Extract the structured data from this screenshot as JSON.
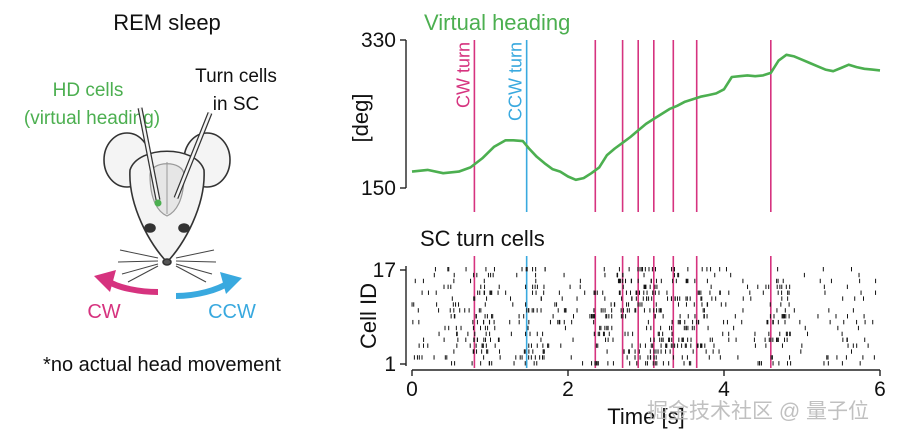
{
  "left_panel": {
    "title": "REM sleep",
    "hd_label_line1": "HD cells",
    "hd_label_line2": "(virtual heading)",
    "turn_label_line1": "Turn cells",
    "turn_label_line2": "in SC",
    "cw_label": "CW",
    "ccw_label": "CCW",
    "footnote": "*no actual head movement"
  },
  "watermark": "掘金技术社区 @ 量子位",
  "colors": {
    "heading": "#4caf50",
    "cw": "#d6337f",
    "ccw": "#39a9df",
    "raster": "#111111",
    "axis": "#222222"
  },
  "chart_data": {
    "type": "line",
    "title": "Virtual heading",
    "xlabel": "Time [s]",
    "xlim": [
      0,
      6
    ],
    "xticks": [
      0,
      2,
      4,
      6
    ],
    "top_panel": {
      "ylabel": "[deg]",
      "ylim": [
        150,
        330
      ],
      "yticks": [
        150,
        330
      ],
      "series": [
        {
          "name": "Virtual heading",
          "x": [
            0,
            0.2,
            0.4,
            0.6,
            0.75,
            0.9,
            1.05,
            1.2,
            1.3,
            1.42,
            1.5,
            1.6,
            1.7,
            1.8,
            1.9,
            2.0,
            2.1,
            2.2,
            2.3,
            2.4,
            2.5,
            2.6,
            2.7,
            2.8,
            2.9,
            3.0,
            3.1,
            3.2,
            3.3,
            3.4,
            3.5,
            3.6,
            3.7,
            3.8,
            3.9,
            4.0,
            4.1,
            4.2,
            4.3,
            4.4,
            4.5,
            4.6,
            4.7,
            4.8,
            4.9,
            5.0,
            5.1,
            5.2,
            5.3,
            5.4,
            5.5,
            5.6,
            5.7,
            5.8,
            5.9,
            6.0
          ],
          "values": [
            170,
            172,
            168,
            170,
            175,
            186,
            200,
            208,
            208,
            207,
            198,
            188,
            180,
            173,
            170,
            164,
            160,
            162,
            168,
            175,
            190,
            198,
            205,
            212,
            220,
            228,
            234,
            240,
            246,
            250,
            255,
            258,
            261,
            263,
            265,
            270,
            285,
            286,
            287,
            286,
            287,
            290,
            305,
            312,
            310,
            306,
            302,
            298,
            294,
            292,
            296,
            300,
            297,
            295,
            294,
            293
          ]
        }
      ],
      "events": [
        {
          "label": "CW turn",
          "x": 0.8,
          "kind": "cw"
        },
        {
          "label": "CCW turn",
          "x": 1.47,
          "kind": "ccw"
        },
        {
          "label": "",
          "x": 2.35,
          "kind": "cw"
        },
        {
          "label": "",
          "x": 2.7,
          "kind": "cw"
        },
        {
          "label": "",
          "x": 2.9,
          "kind": "cw"
        },
        {
          "label": "",
          "x": 3.1,
          "kind": "cw"
        },
        {
          "label": "",
          "x": 3.35,
          "kind": "cw"
        },
        {
          "label": "",
          "x": 3.65,
          "kind": "cw"
        },
        {
          "label": "",
          "x": 4.6,
          "kind": "cw"
        }
      ]
    },
    "bottom_panel": {
      "title": "SC turn cells",
      "ylabel": "Cell ID",
      "ylim": [
        1,
        17
      ],
      "yticks": [
        1,
        17
      ],
      "n_cells": 17
    }
  }
}
